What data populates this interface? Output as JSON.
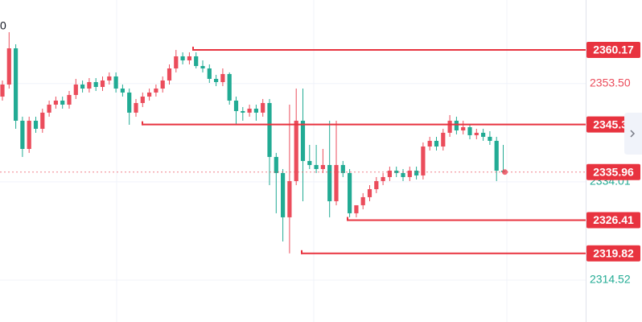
{
  "chart_data": {
    "type": "candlestick",
    "corner_label": "0",
    "up_color": "#eb4d5c",
    "down_color": "#22ab94",
    "level_color": "#e8333f",
    "ylim": [
      2306.22,
      2370.07
    ],
    "yticks": [
      {
        "value": 2353.5,
        "label": "2353.50"
      },
      2334.01,
      2314.52
    ],
    "grid": true,
    "current_price": 2335.96,
    "levels": [
      2360.17,
      2345.38,
      2326.41,
      2319.82
    ],
    "candles": [
      [
        2350.92,
        2354.11,
        2350.12,
        2353.31
      ],
      [
        2353.31,
        2363.69,
        2352.51,
        2360.49
      ],
      [
        2360.49,
        2361.29,
        2344.53,
        2346.13
      ],
      [
        2346.13,
        2346.93,
        2338.95,
        2340.54
      ],
      [
        2340.54,
        2346.93,
        2339.75,
        2346.13
      ],
      [
        2346.13,
        2346.93,
        2343.74,
        2344.53
      ],
      [
        2344.53,
        2348.52,
        2343.74,
        2347.73
      ],
      [
        2347.73,
        2350.12,
        2346.93,
        2349.32
      ],
      [
        2349.32,
        2350.92,
        2348.52,
        2350.12
      ],
      [
        2350.12,
        2350.92,
        2348.52,
        2349.32
      ],
      [
        2349.32,
        2352.03,
        2348.52,
        2351.24
      ],
      [
        2351.24,
        2354.43,
        2350.44,
        2353.31
      ],
      [
        2353.31,
        2354.11,
        2351.72,
        2352.51
      ],
      [
        2352.51,
        2354.59,
        2351.72,
        2353.79
      ],
      [
        2353.79,
        2354.59,
        2352.03,
        2352.83
      ],
      [
        2352.83,
        2354.91,
        2352.03,
        2354.11
      ],
      [
        2354.11,
        2355.71,
        2353.31,
        2354.91
      ],
      [
        2354.91,
        2355.71,
        2351.72,
        2352.51
      ],
      [
        2352.51,
        2353.31,
        2350.92,
        2351.72
      ],
      [
        2351.72,
        2352.51,
        2345.33,
        2347.73
      ],
      [
        2347.73,
        2350.44,
        2346.93,
        2349.64
      ],
      [
        2349.64,
        2351.72,
        2348.84,
        2350.92
      ],
      [
        2350.92,
        2352.51,
        2350.12,
        2351.72
      ],
      [
        2351.72,
        2353.31,
        2350.92,
        2352.51
      ],
      [
        2352.51,
        2354.91,
        2351.72,
        2354.11
      ],
      [
        2354.11,
        2357.3,
        2353.31,
        2356.5
      ],
      [
        2356.5,
        2360.17,
        2355.71,
        2358.9
      ],
      [
        2358.9,
        2359.7,
        2357.3,
        2358.1
      ],
      [
        2358.1,
        2359.7,
        2357.3,
        2358.9
      ],
      [
        2358.9,
        2359.7,
        2356.5,
        2356.98
      ],
      [
        2356.98,
        2358.1,
        2355.71,
        2356.5
      ],
      [
        2356.5,
        2357.3,
        2353.63,
        2354.43
      ],
      [
        2354.43,
        2355.23,
        2352.99,
        2353.79
      ],
      [
        2353.79,
        2356.5,
        2352.99,
        2355.39
      ],
      [
        2355.39,
        2355.71,
        2349.32,
        2350.12
      ],
      [
        2350.12,
        2350.92,
        2345.33,
        2348.05
      ],
      [
        2348.05,
        2348.84,
        2346.13,
        2347.73
      ],
      [
        2347.73,
        2349.32,
        2346.93,
        2348.52
      ],
      [
        2348.52,
        2349.32,
        2346.13,
        2347.73
      ],
      [
        2347.73,
        2350.44,
        2346.93,
        2349.64
      ],
      [
        2349.64,
        2350.44,
        2333.36,
        2338.95
      ],
      [
        2338.95,
        2339.75,
        2327.78,
        2335.76
      ],
      [
        2335.76,
        2336.55,
        2322.19,
        2326.98
      ],
      [
        2326.98,
        2349.32,
        2319.82,
        2334.16
      ],
      [
        2334.16,
        2352.51,
        2333.36,
        2346.13
      ],
      [
        2346.13,
        2352.51,
        2330.17,
        2338.15
      ],
      [
        2338.15,
        2341.34,
        2336.55,
        2337.35
      ],
      [
        2337.35,
        2341.34,
        2335.76,
        2336.55
      ],
      [
        2336.55,
        2340.54,
        2335.76,
        2337.35
      ],
      [
        2337.35,
        2346.13,
        2326.98,
        2330.17
      ],
      [
        2330.17,
        2346.13,
        2329.37,
        2337.35
      ],
      [
        2337.35,
        2338.15,
        2334.96,
        2335.76
      ],
      [
        2335.76,
        2336.55,
        2326.98,
        2327.78
      ],
      [
        2327.78,
        2329.37,
        2326.98,
        2329.37
      ],
      [
        2329.37,
        2331.77,
        2328.57,
        2330.97
      ],
      [
        2330.97,
        2333.36,
        2330.17,
        2332.56
      ],
      [
        2332.56,
        2334.96,
        2331.77,
        2334.16
      ],
      [
        2334.16,
        2335.76,
        2333.36,
        2334.96
      ],
      [
        2334.96,
        2337.03,
        2334.16,
        2336.23
      ],
      [
        2336.23,
        2337.03,
        2334.96,
        2335.76
      ],
      [
        2335.76,
        2336.55,
        2334.16,
        2334.96
      ],
      [
        2334.96,
        2337.03,
        2334.16,
        2336.23
      ],
      [
        2336.23,
        2337.03,
        2334.48,
        2335.28
      ],
      [
        2335.28,
        2341.82,
        2334.48,
        2341.02
      ],
      [
        2341.02,
        2342.94,
        2340.22,
        2342.14
      ],
      [
        2342.14,
        2342.94,
        2340.22,
        2341.02
      ],
      [
        2341.02,
        2344.53,
        2340.22,
        2343.74
      ],
      [
        2343.74,
        2347.25,
        2342.94,
        2346.13
      ],
      [
        2346.13,
        2346.93,
        2343.42,
        2344.21
      ],
      [
        2344.21,
        2346.13,
        2343.42,
        2344.85
      ],
      [
        2344.85,
        2345.33,
        2342.46,
        2343.26
      ],
      [
        2343.26,
        2344.53,
        2342.46,
        2343.74
      ],
      [
        2343.74,
        2344.53,
        2342.14,
        2342.94
      ],
      [
        2342.94,
        2344.05,
        2341.34,
        2342.14
      ],
      [
        2342.14,
        2342.94,
        2334.16,
        2336.23
      ],
      [
        2336.23,
        2341.34,
        2335.76,
        2335.96
      ]
    ]
  }
}
